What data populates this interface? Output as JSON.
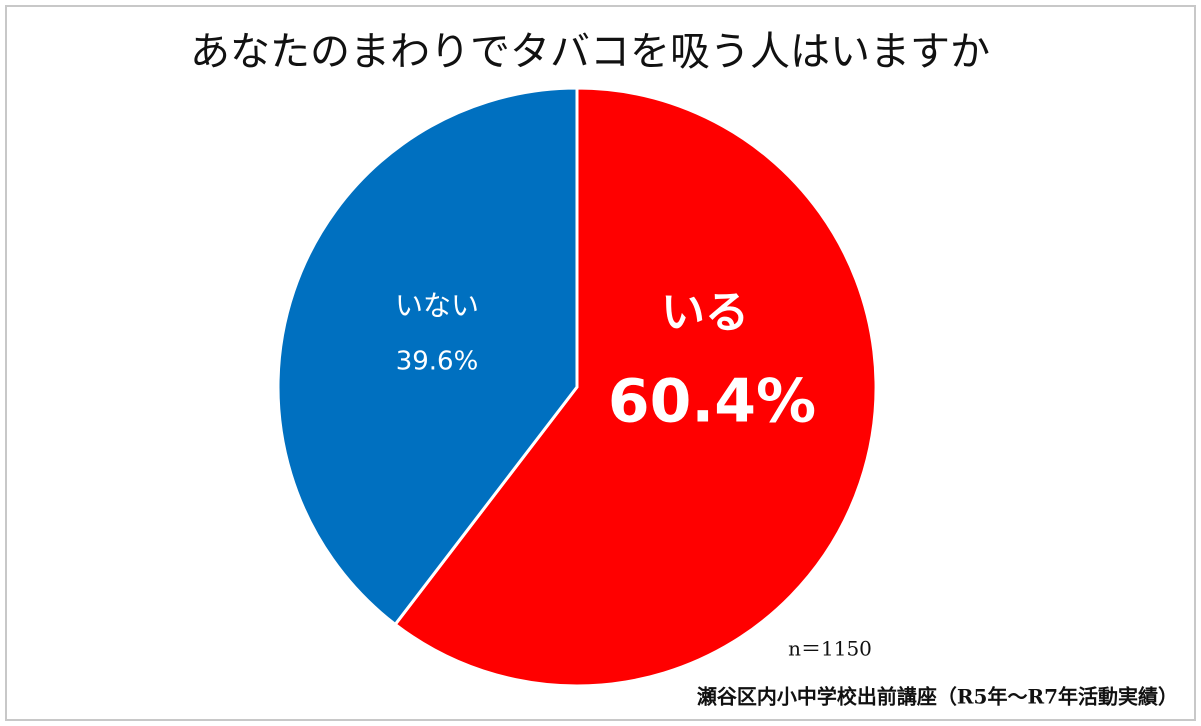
{
  "chart_data": {
    "type": "pie",
    "title": "あなたのまわりでタバコを吸う人はいますか",
    "categories": [
      "いる",
      "いない"
    ],
    "values": [
      60.4,
      39.6
    ],
    "value_labels": [
      "60.4%",
      "39.6%"
    ],
    "colors": [
      "#ff0000",
      "#0070c0"
    ],
    "annotations": [
      "n＝1150",
      "瀬谷区内小中学校出前講座（R5年～R7年活動実績）"
    ]
  }
}
